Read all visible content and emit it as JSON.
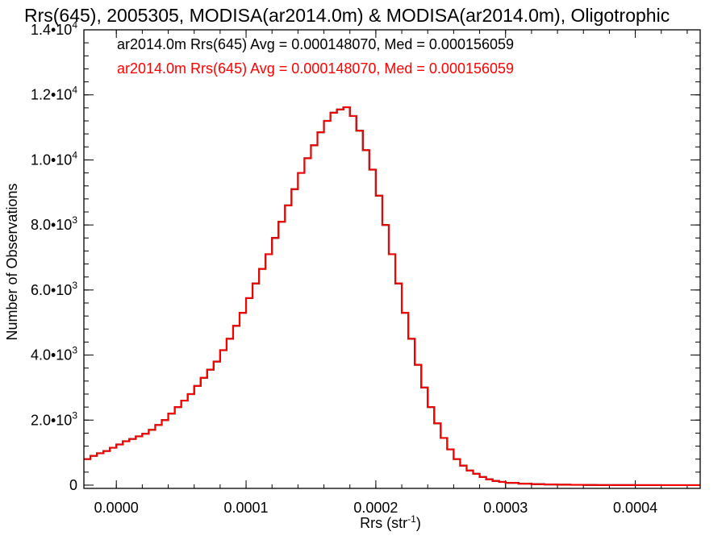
{
  "chart_data": {
    "type": "histogram",
    "title": "Rrs(645), 2005305, MODISA(ar2014.0m) & MODISA(ar2014.0m), Oligotrophic",
    "xlabel": "Rrs (str⁻¹)",
    "ylabel": "Number of Observations",
    "xlim": [
      -2.5e-05,
      0.00045
    ],
    "ylim": [
      -100,
      14000
    ],
    "x_ticks": [
      {
        "value": 0.0,
        "label": "0.0000"
      },
      {
        "value": 0.0001,
        "label": "0.0001"
      },
      {
        "value": 0.0002,
        "label": "0.0002"
      },
      {
        "value": 0.0003,
        "label": "0.0003"
      },
      {
        "value": 0.0004,
        "label": "0.0004"
      }
    ],
    "y_ticks": [
      {
        "value": 0,
        "mant": "0",
        "exp": ""
      },
      {
        "value": 2000,
        "mant": "2.0•10",
        "exp": "3"
      },
      {
        "value": 4000,
        "mant": "4.0•10",
        "exp": "3"
      },
      {
        "value": 6000,
        "mant": "6.0•10",
        "exp": "3"
      },
      {
        "value": 8000,
        "mant": "8.0•10",
        "exp": "3"
      },
      {
        "value": 10000,
        "mant": "1.0•10",
        "exp": "4"
      },
      {
        "value": 12000,
        "mant": "1.2•10",
        "exp": "4"
      },
      {
        "value": 14000,
        "mant": "1.4•10",
        "exp": "4"
      }
    ],
    "series": [
      {
        "name": "ar2014.0m Rrs(645)",
        "color": "#000000"
      },
      {
        "name": "ar2014.0m Rrs(645)",
        "color": "#ff0000"
      }
    ],
    "annotations": [
      {
        "text": "ar2014.0m Rrs(645) Avg = 0.000148070, Med = 0.000156059",
        "color": "#000000"
      },
      {
        "text": "ar2014.0m Rrs(645) Avg = 0.000148070, Med = 0.000156059",
        "color": "#ff0000"
      }
    ],
    "x": [
      -2.5e-05,
      -2e-05,
      -1.5e-05,
      -1e-05,
      -5e-06,
      0.0,
      5e-06,
      1e-05,
      1.5e-05,
      2e-05,
      2.5e-05,
      3e-05,
      3.5e-05,
      4e-05,
      4.5e-05,
      5e-05,
      5.5e-05,
      6e-05,
      6.5e-05,
      7e-05,
      7.5e-05,
      8e-05,
      8.5e-05,
      9e-05,
      9.5e-05,
      0.0001,
      0.000105,
      0.00011,
      0.000115,
      0.00012,
      0.000125,
      0.00013,
      0.000135,
      0.00014,
      0.000145,
      0.00015,
      0.000155,
      0.00016,
      0.000165,
      0.00017,
      0.000175,
      0.00018,
      0.000185,
      0.00019,
      0.000195,
      0.0002,
      0.000205,
      0.00021,
      0.000215,
      0.00022,
      0.000225,
      0.00023,
      0.000235,
      0.00024,
      0.000245,
      0.00025,
      0.000255,
      0.00026,
      0.000265,
      0.00027,
      0.000275,
      0.00028,
      0.000285,
      0.00029,
      0.000295,
      0.0003,
      0.00031,
      0.00032,
      0.00033,
      0.00034,
      0.00035,
      0.00036,
      0.00037,
      0.00038,
      0.00039,
      0.0004,
      0.00041,
      0.00042,
      0.00043,
      0.00044,
      0.00045
    ],
    "y": [
      800,
      900,
      980,
      1050,
      1150,
      1250,
      1350,
      1420,
      1500,
      1580,
      1700,
      1850,
      2000,
      2200,
      2400,
      2600,
      2800,
      3050,
      3300,
      3550,
      3800,
      4150,
      4500,
      4900,
      5300,
      5750,
      6200,
      6650,
      7100,
      7600,
      8100,
      8600,
      9100,
      9600,
      10050,
      10450,
      10850,
      11200,
      11450,
      11550,
      11620,
      11350,
      10900,
      10300,
      9700,
      8900,
      8000,
      7100,
      6200,
      5300,
      4500,
      3700,
      3000,
      2400,
      1900,
      1450,
      1100,
      800,
      600,
      450,
      350,
      250,
      180,
      130,
      100,
      70,
      45,
      30,
      20,
      15,
      10,
      5,
      3,
      2,
      2,
      1,
      1,
      0,
      0,
      0,
      0
    ]
  }
}
